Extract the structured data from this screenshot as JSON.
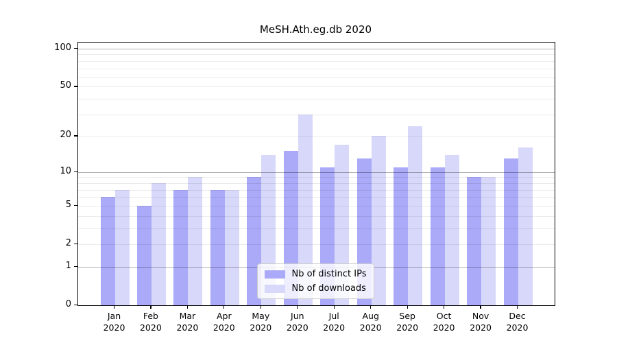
{
  "chart_data": {
    "type": "bar",
    "title": "MeSH.Ath.eg.db 2020",
    "y_scale": "log1p",
    "grid": true,
    "categories": [
      {
        "month": "Jan",
        "year": "2020"
      },
      {
        "month": "Feb",
        "year": "2020"
      },
      {
        "month": "Mar",
        "year": "2020"
      },
      {
        "month": "Apr",
        "year": "2020"
      },
      {
        "month": "May",
        "year": "2020"
      },
      {
        "month": "Jun",
        "year": "2020"
      },
      {
        "month": "Jul",
        "year": "2020"
      },
      {
        "month": "Aug",
        "year": "2020"
      },
      {
        "month": "Sep",
        "year": "2020"
      },
      {
        "month": "Oct",
        "year": "2020"
      },
      {
        "month": "Nov",
        "year": "2020"
      },
      {
        "month": "Dec",
        "year": "2020"
      }
    ],
    "series": [
      {
        "name": "Nb of distinct IPs",
        "color": "#aaaaf8",
        "values": [
          6,
          5,
          7,
          7,
          9,
          15,
          11,
          13,
          11,
          11,
          9,
          13
        ]
      },
      {
        "name": "Nb of downloads",
        "color": "#d8d8fa",
        "values": [
          7,
          8,
          9,
          7,
          14,
          30,
          17,
          20,
          24,
          14,
          9,
          16
        ]
      }
    ],
    "y_axis": {
      "tick_values": [
        0,
        1,
        2,
        5,
        10,
        20,
        50,
        100
      ],
      "major_gridlines": [
        1,
        10,
        100
      ],
      "minor_gridlines": [
        2,
        3,
        4,
        5,
        6,
        7,
        8,
        9,
        20,
        30,
        40,
        50,
        60,
        70,
        80,
        90
      ],
      "ylim": [
        0,
        112
      ]
    },
    "legend": {
      "position": "lower center"
    },
    "colors": {
      "background": "#ffffff",
      "spine": "#000000",
      "text": "#000000",
      "major_grid": "#b3b3b3",
      "minor_grid": "#e8e8e8"
    }
  }
}
